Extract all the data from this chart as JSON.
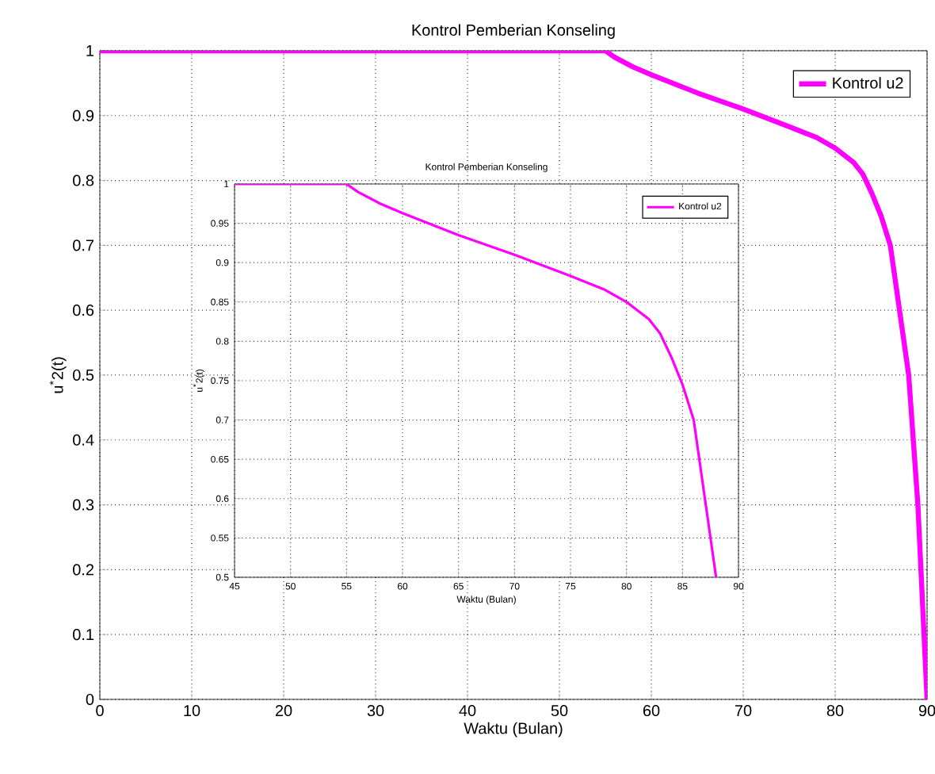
{
  "chart_data": [
    {
      "type": "line",
      "title": "Kontrol Pemberian Konseling",
      "xlabel": "Waktu (Bulan)",
      "ylabel": "u$^{*}$2(t)",
      "xlim": [
        0,
        90
      ],
      "ylim": [
        0,
        1
      ],
      "xticks": [
        0,
        10,
        20,
        30,
        40,
        50,
        60,
        70,
        80,
        90
      ],
      "yticks": [
        0,
        0.1,
        0.2,
        0.3,
        0.4,
        0.5,
        0.6,
        0.7,
        0.8,
        0.9,
        1
      ],
      "grid": true,
      "legend": "top right",
      "series": [
        {
          "name": "Kontrol u2",
          "color": "#ff00ff",
          "x": [
            0,
            55,
            56,
            58,
            60,
            65,
            70,
            75,
            78,
            80,
            82,
            83,
            84,
            85,
            86,
            87,
            87.5,
            88,
            88.5,
            89,
            89.5,
            90
          ],
          "values": [
            1,
            1,
            0.99,
            0.975,
            0.963,
            0.935,
            0.91,
            0.883,
            0.866,
            0.85,
            0.828,
            0.81,
            0.78,
            0.745,
            0.7,
            0.6,
            0.55,
            0.5,
            0.4,
            0.3,
            0.15,
            0
          ]
        }
      ]
    },
    {
      "type": "line",
      "title": "Kontrol Pemberian Konseling",
      "xlabel": "Waktu (Bulan)",
      "ylabel": "u$^{*}$2(t)",
      "xlim": [
        45,
        90
      ],
      "ylim": [
        0.5,
        1
      ],
      "xticks": [
        45,
        50,
        55,
        60,
        65,
        70,
        75,
        80,
        85,
        90
      ],
      "yticks": [
        0.5,
        0.55,
        0.6,
        0.65,
        0.7,
        0.75,
        0.8,
        0.85,
        0.9,
        0.95,
        1
      ],
      "grid": true,
      "legend": "top right",
      "series": [
        {
          "name": "Kontrol u2",
          "color": "#ff00ff",
          "x": [
            45,
            55,
            56,
            58,
            60,
            65,
            70,
            75,
            78,
            80,
            82,
            83,
            84,
            85,
            86,
            87,
            87.5,
            88
          ],
          "values": [
            1,
            1,
            0.99,
            0.975,
            0.963,
            0.935,
            0.91,
            0.883,
            0.866,
            0.85,
            0.828,
            0.81,
            0.78,
            0.745,
            0.7,
            0.6,
            0.55,
            0.5
          ]
        }
      ]
    }
  ]
}
